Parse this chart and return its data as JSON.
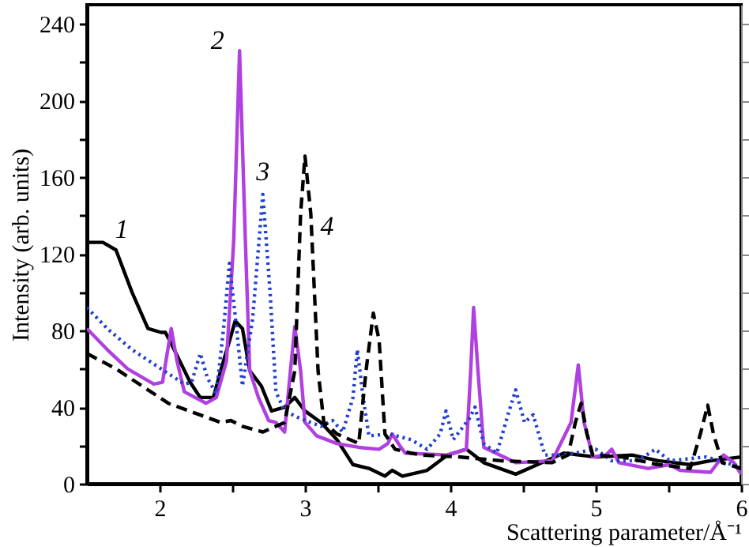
{
  "chart_data": {
    "type": "line",
    "xlabel": "Scattering parameter/Å⁻¹",
    "ylabel": "Intensity (arb. units)",
    "xlim": [
      1.5,
      6
    ],
    "ylim": [
      0,
      250
    ],
    "xticks": [
      2,
      {
        "value": 2.5,
        "label": null
      },
      3,
      {
        "value": 3.5,
        "label": null
      },
      4,
      {
        "value": 4.5,
        "label": null
      },
      5,
      {
        "value": 5.5,
        "label": null
      },
      6
    ],
    "yticks": [
      0,
      {
        "value": 20,
        "label": null
      },
      40,
      {
        "value": 60,
        "label": null
      },
      80,
      {
        "value": 100,
        "label": null
      },
      120,
      {
        "value": 140,
        "label": null
      },
      160,
      {
        "value": 180,
        "label": null
      },
      200,
      {
        "value": 220,
        "label": null
      },
      240
    ],
    "marker": "none",
    "series": [
      {
        "name": "1",
        "color": "#000000",
        "line_style": "solid",
        "x": [
          1.5,
          1.61,
          1.7,
          1.81,
          1.92,
          2.01,
          2.04,
          2.1,
          2.21,
          2.28,
          2.37,
          2.42,
          2.49,
          2.52,
          2.57,
          2.62,
          2.7,
          2.77,
          2.86,
          2.93,
          3.0,
          3.11,
          3.22,
          3.33,
          3.44,
          3.55,
          3.6,
          3.67,
          3.84,
          3.98,
          4.11,
          4.23,
          4.45,
          4.63,
          4.78,
          5.0,
          5.25,
          5.43,
          5.65,
          5.79,
          6.0
        ],
        "values": [
          126,
          126,
          122,
          100,
          81,
          79,
          79,
          70,
          53,
          45,
          45,
          59,
          77,
          85,
          81,
          59,
          51,
          38,
          40,
          45,
          38,
          32,
          23,
          10,
          8,
          4,
          7,
          4,
          7,
          15,
          18,
          11,
          5,
          11,
          16,
          14,
          15,
          12,
          10,
          12,
          14
        ]
      },
      {
        "name": "2",
        "color": "#b040e0",
        "line_style": "solid",
        "x": [
          1.5,
          1.64,
          1.78,
          1.96,
          2.02,
          2.08,
          2.12,
          2.17,
          2.32,
          2.39,
          2.46,
          2.51,
          2.55,
          2.59,
          2.62,
          2.68,
          2.75,
          2.8,
          2.86,
          2.9,
          2.93,
          2.97,
          3.0,
          3.08,
          3.22,
          3.37,
          3.51,
          3.57,
          3.6,
          3.66,
          3.69,
          3.98,
          4.11,
          4.14,
          4.16,
          4.19,
          4.23,
          4.45,
          4.7,
          4.83,
          4.88,
          4.92,
          4.98,
          5.07,
          5.11,
          5.16,
          5.36,
          5.51,
          5.58,
          5.79,
          5.88,
          5.95,
          6.0
        ],
        "values": [
          81,
          70,
          60,
          52,
          53,
          81,
          64,
          48,
          42,
          45,
          64,
          127,
          226,
          127,
          59,
          45,
          33,
          32,
          27,
          59,
          82,
          59,
          32,
          25,
          21,
          19,
          18,
          21,
          26,
          19,
          16,
          15,
          18,
          59,
          92,
          59,
          19,
          11,
          12,
          32,
          62,
          32,
          14,
          15,
          18,
          11,
          8,
          10,
          7,
          6,
          15,
          11,
          5
        ]
      },
      {
        "name": "3",
        "color": "#1f3fd0",
        "line_style": "dotted",
        "x": [
          1.5,
          1.64,
          1.81,
          2.03,
          2.17,
          2.22,
          2.28,
          2.33,
          2.39,
          2.44,
          2.48,
          2.53,
          2.57,
          2.64,
          2.71,
          2.76,
          2.8,
          2.86,
          2.97,
          3.11,
          3.19,
          3.26,
          3.33,
          3.36,
          3.4,
          3.44,
          3.58,
          3.73,
          3.84,
          3.93,
          3.97,
          4.02,
          4.13,
          4.17,
          4.23,
          4.32,
          4.4,
          4.45,
          4.51,
          4.57,
          4.65,
          4.78,
          4.85,
          5.0,
          5.11,
          5.29,
          5.41,
          5.51,
          5.76,
          5.94,
          6.0
        ],
        "values": [
          92,
          81,
          70,
          59,
          52,
          53,
          68,
          55,
          47,
          81,
          115,
          81,
          51,
          86,
          151,
          100,
          48,
          38,
          34,
          30,
          33,
          27,
          45,
          70,
          45,
          25,
          26,
          23,
          18,
          26,
          38,
          23,
          34,
          40,
          21,
          16,
          37,
          49,
          32,
          36,
          15,
          15,
          16,
          18,
          12,
          12,
          18,
          12,
          14,
          10,
          9
        ]
      },
      {
        "name": "4",
        "color": "#000000",
        "line_style": "dashed",
        "x": [
          1.5,
          1.7,
          1.88,
          2.06,
          2.24,
          2.42,
          2.49,
          2.57,
          2.71,
          2.86,
          2.93,
          2.97,
          3.0,
          3.04,
          3.09,
          3.13,
          3.22,
          3.37,
          3.42,
          3.47,
          3.51,
          3.55,
          3.62,
          3.73,
          3.8,
          4.06,
          4.35,
          4.7,
          4.81,
          4.86,
          4.9,
          4.94,
          4.98,
          5.18,
          5.43,
          5.65,
          5.72,
          5.77,
          5.81,
          5.87,
          6.0
        ],
        "values": [
          68,
          60,
          51,
          42,
          37,
          32,
          33,
          30,
          27,
          32,
          59,
          141,
          171,
          141,
          59,
          32,
          26,
          21,
          59,
          89,
          75,
          26,
          18,
          16,
          15,
          14,
          12,
          11,
          15,
          32,
          42,
          26,
          15,
          14,
          10,
          8,
          26,
          41,
          26,
          11,
          8
        ]
      }
    ]
  }
}
